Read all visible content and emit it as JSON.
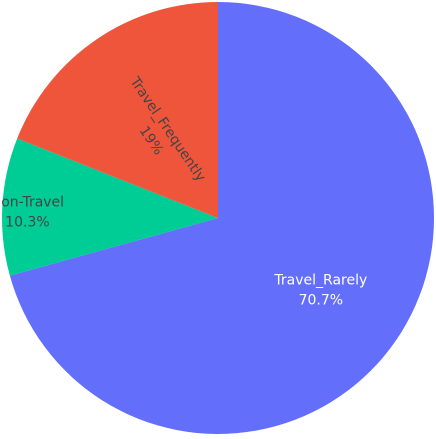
{
  "chart_data": {
    "type": "pie",
    "title": "",
    "slices": [
      {
        "label": "Travel_Rarely",
        "value": 70.7,
        "display": "70.7%",
        "color": "#636efa",
        "text_color": "#ffffff"
      },
      {
        "label": "Non-Travel",
        "value": 10.3,
        "display": "10.3%",
        "color": "#00cc96",
        "text_color": "#444444"
      },
      {
        "label": "Travel_Frequently",
        "value": 19,
        "display": "19%",
        "color": "#ef553b",
        "text_color": "#444444"
      }
    ],
    "direction": "clockwise",
    "start_angle": "12 o'clock",
    "legend": "none"
  }
}
